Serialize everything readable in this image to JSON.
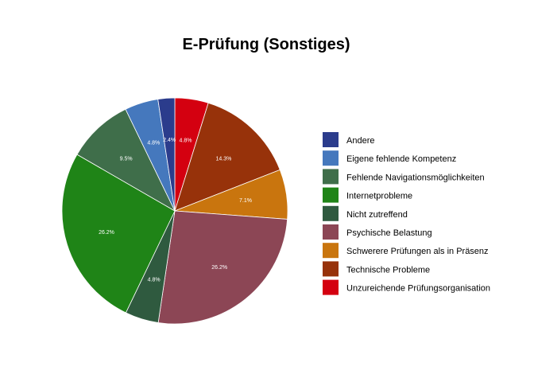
{
  "chart_data": {
    "type": "pie",
    "title": "E-Prüfung (Sonstiges)",
    "legend_position": "right",
    "start_direction": "clockwise from top",
    "slices": [
      {
        "label": "Unzureichende Prüfungsorganisation",
        "value": 4.8,
        "display": "4.8%",
        "color": "#d40010"
      },
      {
        "label": "Technische Probleme",
        "value": 14.3,
        "display": "14.3%",
        "color": "#97320a"
      },
      {
        "label": "Schwerere Prüfungen als in Präsenz",
        "value": 7.1,
        "display": "7.1%",
        "color": "#c9750e"
      },
      {
        "label": "Psychische Belastung",
        "value": 26.2,
        "display": "26.2%",
        "color": "#8c4655"
      },
      {
        "label": "Nicht zutreffend",
        "value": 4.8,
        "display": "4.8%",
        "color": "#2f5a3f"
      },
      {
        "label": "Internetprobleme",
        "value": 26.2,
        "display": "26.2%",
        "color": "#1f8417"
      },
      {
        "label": "Fehlende Navigationsmöglichkeiten",
        "value": 9.5,
        "display": "9.5%",
        "color": "#3f6e4a"
      },
      {
        "label": "Eigene fehlende Kompetenz",
        "value": 4.8,
        "display": "4.8%",
        "color": "#4578bd"
      },
      {
        "label": "Andere",
        "value": 2.4,
        "display": "2.4%",
        "color": "#2b3c8c"
      }
    ],
    "legend_order": [
      "Andere",
      "Eigene fehlende Kompetenz",
      "Fehlende Navigationsmöglichkeiten",
      "Internetprobleme",
      "Nicht zutreffend",
      "Psychische Belastung",
      "Schwerere Prüfungen als in Präsenz",
      "Technische Probleme",
      "Unzureichende Prüfungsorganisation"
    ]
  }
}
